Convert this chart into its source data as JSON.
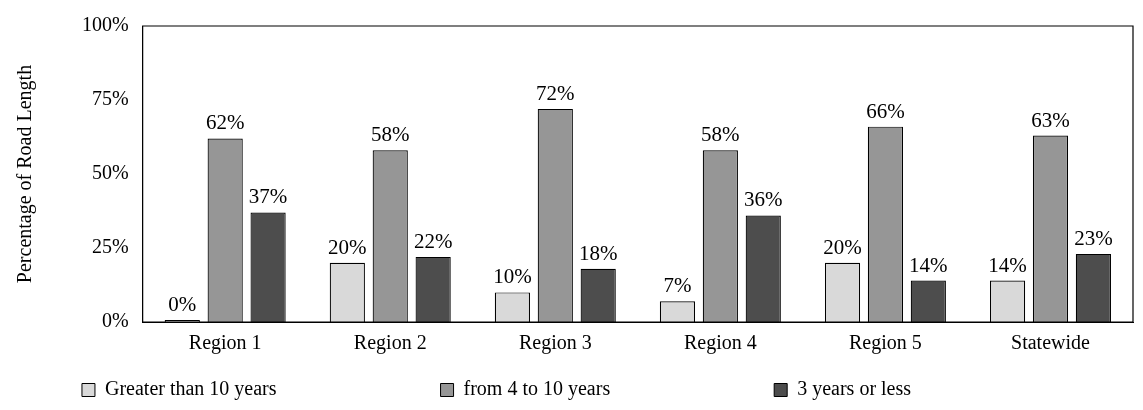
{
  "chart_data": {
    "type": "bar",
    "ylabel": "Percentage of Road Length",
    "categories": [
      "Region 1",
      "Region 2",
      "Region 3",
      "Region 4",
      "Region 5",
      "Statewide"
    ],
    "series": [
      {
        "name": "Greater than 10 years",
        "color": "#d9d9d9",
        "values": [
          0,
          20,
          10,
          7,
          20,
          14
        ],
        "value_labels": [
          "0%",
          "20%",
          "10%",
          "7%",
          "20%",
          "14%"
        ]
      },
      {
        "name": "from 4 to 10 years",
        "color": "#969696",
        "values": [
          62,
          58,
          72,
          58,
          66,
          63
        ],
        "value_labels": [
          "62%",
          "58%",
          "72%",
          "58%",
          "66%",
          "63%"
        ]
      },
      {
        "name": "3 years or less",
        "color": "#4d4d4d",
        "values": [
          37,
          22,
          18,
          36,
          14,
          23
        ],
        "value_labels": [
          "37%",
          "22%",
          "18%",
          "36%",
          "14%",
          "23%"
        ]
      }
    ],
    "ylim": [
      0,
      100
    ],
    "yticks": [
      {
        "value": 0,
        "label": "0%"
      },
      {
        "value": 25,
        "label": "25%"
      },
      {
        "value": 50,
        "label": "50%"
      },
      {
        "value": 75,
        "label": "75%"
      },
      {
        "value": 100,
        "label": "100%"
      }
    ],
    "grid": false,
    "legend": "bottom"
  }
}
